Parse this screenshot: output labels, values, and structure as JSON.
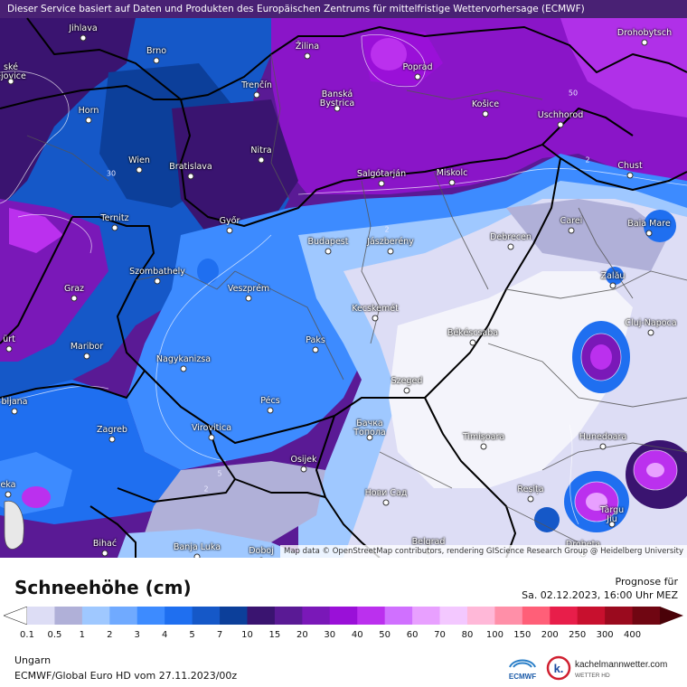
{
  "banner": "Dieser Service basiert auf Daten und Produkten des Europäischen Zentrums für mittelfristige Wettervorhersage (ECMWF)",
  "attribution": "Map data © OpenStreetMap contributors, rendering GIScience Research Group @ Heidelberg University",
  "legend": {
    "title": "Schneehöhe (cm)",
    "forecast_label": "Prognose für",
    "forecast_time": "Sa. 02.12.2023, 16:00 Uhr MEZ",
    "region": "Ungarn",
    "model": "ECMWF/Global Euro HD vom  27.11.2023/00z",
    "ticks": [
      "0.1",
      "0.5",
      "1",
      "2",
      "3",
      "4",
      "5",
      "7",
      "10",
      "15",
      "20",
      "30",
      "40",
      "50",
      "60",
      "70",
      "80",
      "100",
      "150",
      "200",
      "250",
      "300",
      "400"
    ],
    "colors": [
      "#ddddf5",
      "#b0b0d8",
      "#9fc8ff",
      "#70aaff",
      "#3d8bff",
      "#1f6ff0",
      "#1558c8",
      "#0c3f9a",
      "#3a1470",
      "#5a1a95",
      "#7a18b8",
      "#9a10d8",
      "#bb30ee",
      "#d070ff",
      "#e8a0ff",
      "#f3c8ff",
      "#ffb8d8",
      "#ff8fa8",
      "#ff5f78",
      "#e81e4a",
      "#c8102e",
      "#9a0a1e",
      "#700612",
      "#4a0208"
    ]
  },
  "logos": {
    "ecmwf": "ECMWF",
    "km_name": "kachelmannwetter.com",
    "km_sub": "WETTER HD"
  },
  "cities": [
    {
      "name": "Jihlava"
    },
    {
      "name": "Brno"
    },
    {
      "name": "Žilina"
    },
    {
      "name": "Poprad"
    },
    {
      "name": "Drohobytsch"
    },
    {
      "name": "ské\nějovice"
    },
    {
      "name": "Trenčín"
    },
    {
      "name": "Banská\nBystrica"
    },
    {
      "name": "Košice"
    },
    {
      "name": "Horn"
    },
    {
      "name": "Uschhorod"
    },
    {
      "name": "Nitra"
    },
    {
      "name": "Wien"
    },
    {
      "name": "Bratislava"
    },
    {
      "name": "Salgótarján"
    },
    {
      "name": "Miskolc"
    },
    {
      "name": "Chust"
    },
    {
      "name": "Ternitz"
    },
    {
      "name": "Győr"
    },
    {
      "name": "Budapest"
    },
    {
      "name": "Jászberény"
    },
    {
      "name": "Debrecen"
    },
    {
      "name": "Carei"
    },
    {
      "name": "Baia Mare"
    },
    {
      "name": "Szombathely"
    },
    {
      "name": "Zalău"
    },
    {
      "name": "Graz"
    },
    {
      "name": "Veszprém"
    },
    {
      "name": "Kecskemét"
    },
    {
      "name": "Cluj-Napoca"
    },
    {
      "name": "Maribor"
    },
    {
      "name": "Paks"
    },
    {
      "name": "Békéscsaba"
    },
    {
      "name": "ürt"
    },
    {
      "name": "Nagykanizsa"
    },
    {
      "name": "Szeged"
    },
    {
      "name": "Pécs"
    },
    {
      "name": "bljana"
    },
    {
      "name": "Бачка\nТопола"
    },
    {
      "name": "Zagreb"
    },
    {
      "name": "Virovitica"
    },
    {
      "name": "Timișoara"
    },
    {
      "name": "Hunedoara"
    },
    {
      "name": "Osijek"
    },
    {
      "name": "Reșița"
    },
    {
      "name": "Нови Сад"
    },
    {
      "name": "Târgu\nJiu"
    },
    {
      "name": "eka"
    },
    {
      "name": "Bihać"
    },
    {
      "name": "Banja Luka"
    },
    {
      "name": "Doboj"
    },
    {
      "name": "Belgrad"
    },
    {
      "name": "Drobeta"
    }
  ]
}
